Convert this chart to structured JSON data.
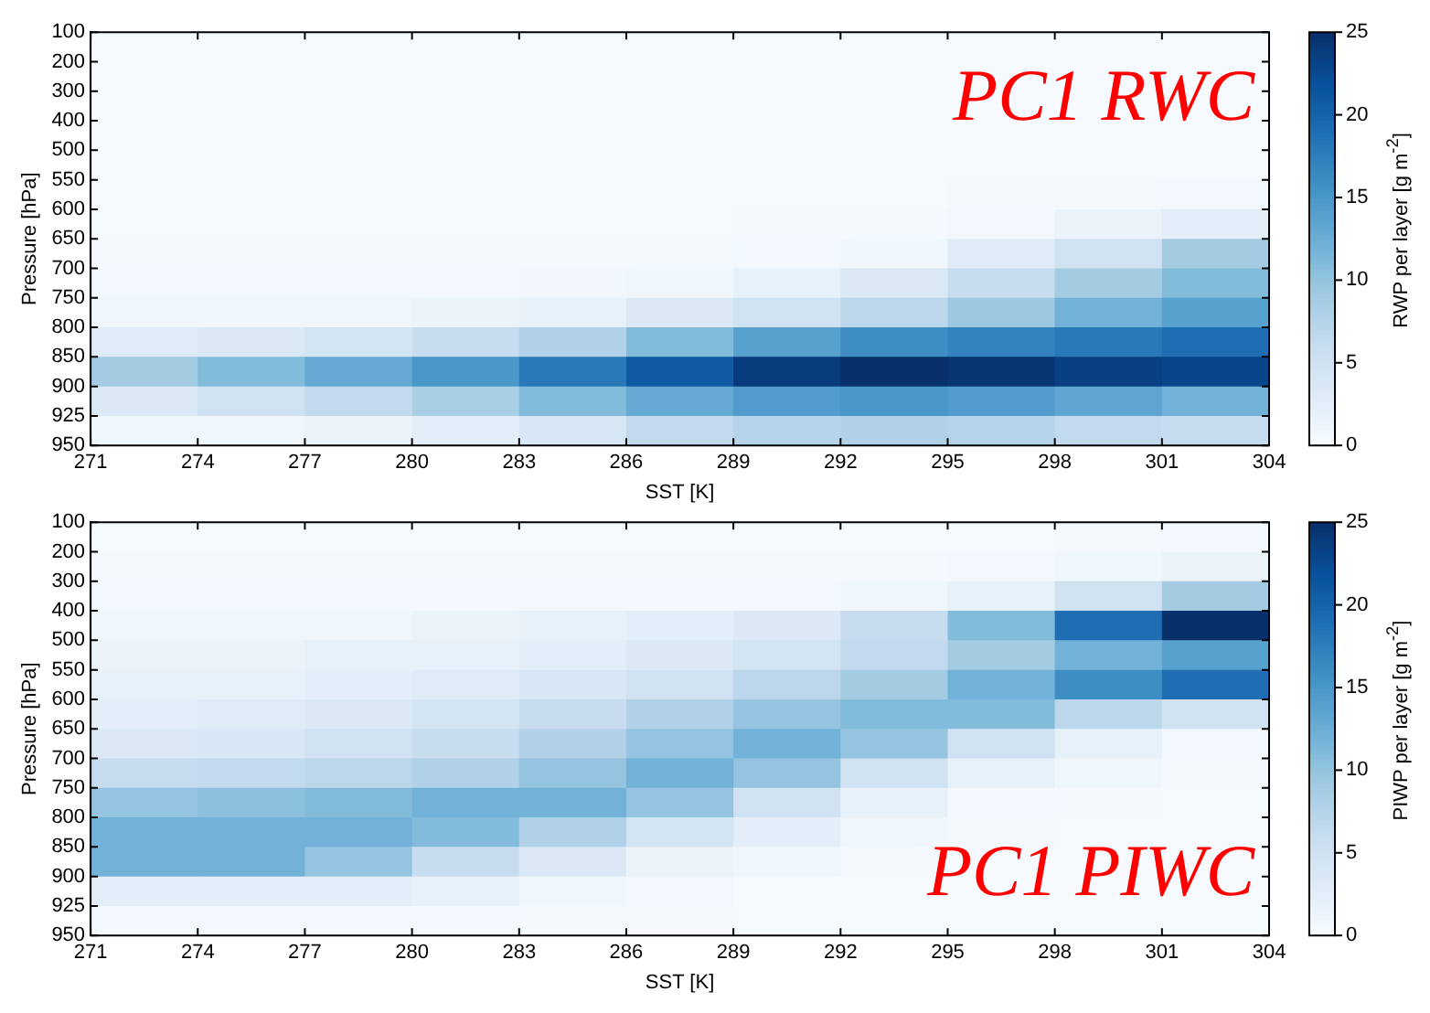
{
  "chart_data": [
    {
      "type": "heatmap",
      "xlabel": "SST [K]",
      "ylabel": "Pressure [hPa]",
      "clabel": "RWP per layer [g m$^{-2}$]",
      "annotations": [
        "PC1 RWC"
      ],
      "xlim": [
        271,
        304
      ],
      "xticks": [
        271,
        274,
        277,
        280,
        283,
        286,
        289,
        292,
        295,
        298,
        301,
        304
      ],
      "y_categories": [
        "100",
        "200",
        "300",
        "400",
        "500",
        "550",
        "600",
        "650",
        "700",
        "750",
        "800",
        "850",
        "900",
        "925",
        "950"
      ],
      "clim": [
        0,
        25
      ],
      "cticks": [
        0,
        5,
        10,
        15,
        20,
        25
      ],
      "grid": false,
      "cells": [
        [
          0.1,
          0.1,
          0.1,
          0.1,
          0.1,
          0.1,
          0.1,
          0.1,
          0.1,
          0.1,
          0.1
        ],
        [
          0.1,
          0.1,
          0.1,
          0.1,
          0.1,
          0.1,
          0.1,
          0.1,
          0.1,
          0.1,
          0.1
        ],
        [
          0.1,
          0.1,
          0.1,
          0.1,
          0.1,
          0.1,
          0.1,
          0.1,
          0.1,
          0.1,
          0.1
        ],
        [
          0.1,
          0.1,
          0.1,
          0.1,
          0.1,
          0.1,
          0.1,
          0.1,
          0.1,
          0.1,
          0.1
        ],
        [
          0.1,
          0.1,
          0.1,
          0.1,
          0.1,
          0.1,
          0.1,
          0.1,
          0.1,
          0.1,
          0.1
        ],
        [
          0.1,
          0.1,
          0.1,
          0.1,
          0.1,
          0.1,
          0.2,
          0.2,
          0.3,
          0.4,
          0.5
        ],
        [
          0.2,
          0.2,
          0.2,
          0.2,
          0.2,
          0.2,
          0.3,
          0.4,
          0.6,
          1.5,
          2.5
        ],
        [
          0.3,
          0.3,
          0.3,
          0.3,
          0.3,
          0.4,
          0.6,
          1,
          3,
          5,
          9
        ],
        [
          0.5,
          0.5,
          0.5,
          0.5,
          0.7,
          1,
          2,
          3.5,
          6,
          9,
          11
        ],
        [
          1,
          1,
          1,
          1.5,
          2,
          3.5,
          5,
          7,
          9.5,
          12,
          14
        ],
        [
          3,
          3.5,
          4.5,
          6,
          8,
          11,
          14,
          16,
          17,
          18,
          19
        ],
        [
          9,
          11,
          13,
          15,
          18,
          21,
          24,
          25,
          24.5,
          23.5,
          23
        ],
        [
          3.5,
          5,
          6.5,
          8.5,
          11,
          13,
          14.5,
          15,
          14.5,
          13.5,
          12
        ],
        [
          1,
          1,
          1.5,
          2.5,
          4,
          6.5,
          7.5,
          8,
          7.5,
          6.5,
          6
        ],
        [
          null,
          null,
          null,
          null,
          null,
          null,
          null,
          null,
          null,
          null,
          null
        ]
      ]
    },
    {
      "type": "heatmap",
      "xlabel": "SST [K]",
      "ylabel": "Pressure [hPa]",
      "clabel": "PIWP per layer [g m$^{-2}$]",
      "annotations": [
        "PC1 PIWC"
      ],
      "xlim": [
        271,
        304
      ],
      "xticks": [
        271,
        274,
        277,
        280,
        283,
        286,
        289,
        292,
        295,
        298,
        301,
        304
      ],
      "y_categories": [
        "100",
        "200",
        "300",
        "400",
        "500",
        "550",
        "600",
        "650",
        "700",
        "750",
        "800",
        "850",
        "900",
        "925",
        "950"
      ],
      "clim": [
        0,
        25
      ],
      "cticks": [
        0,
        5,
        10,
        15,
        20,
        25
      ],
      "grid": false,
      "cells": [
        [
          0.2,
          0.2,
          0.2,
          0.2,
          0.2,
          0.2,
          0.2,
          0.2,
          0.2,
          0.3,
          0.5
        ],
        [
          0.3,
          0.3,
          0.3,
          0.3,
          0.3,
          0.3,
          0.3,
          0.3,
          0.5,
          1,
          1.5
        ],
        [
          0.5,
          0.5,
          0.5,
          0.5,
          0.5,
          0.5,
          0.5,
          1,
          2,
          5,
          9
        ],
        [
          1,
          1,
          1,
          1.5,
          2,
          2.5,
          3.5,
          6,
          11,
          19,
          25
        ],
        [
          1.5,
          1.5,
          2,
          2,
          2.5,
          3.5,
          4.5,
          6.5,
          9,
          12,
          14
        ],
        [
          2,
          2,
          2.5,
          3,
          4,
          5,
          7,
          9,
          12,
          16,
          19
        ],
        [
          2.5,
          3,
          3.5,
          4.5,
          6,
          8,
          10,
          11,
          11,
          7,
          5
        ],
        [
          3.5,
          4,
          5,
          6,
          8,
          10,
          12,
          10,
          5,
          2,
          0.5
        ],
        [
          6,
          6.5,
          7,
          8,
          10,
          12,
          10,
          5,
          2,
          1,
          0.3
        ],
        [
          10,
          10.5,
          11,
          12,
          12,
          10,
          5,
          2,
          0.5,
          0.3,
          0.2
        ],
        [
          12,
          12,
          12,
          11,
          8,
          4.5,
          2.5,
          1,
          0.3,
          0.2,
          0.1
        ],
        [
          12,
          12,
          10,
          6,
          3.5,
          1.5,
          1,
          0.3,
          0.1,
          0.1,
          0.1
        ],
        [
          2.5,
          2.5,
          2.5,
          2,
          1,
          0.5,
          0.2,
          0.1,
          0.1,
          0.1,
          0.1
        ],
        [
          0.5,
          0.5,
          0.5,
          0.5,
          0.4,
          0.3,
          0.2,
          0.2,
          0.2,
          0.2,
          0.2
        ],
        [
          null,
          null,
          null,
          null,
          null,
          null,
          null,
          null,
          null,
          null,
          null
        ]
      ]
    }
  ]
}
